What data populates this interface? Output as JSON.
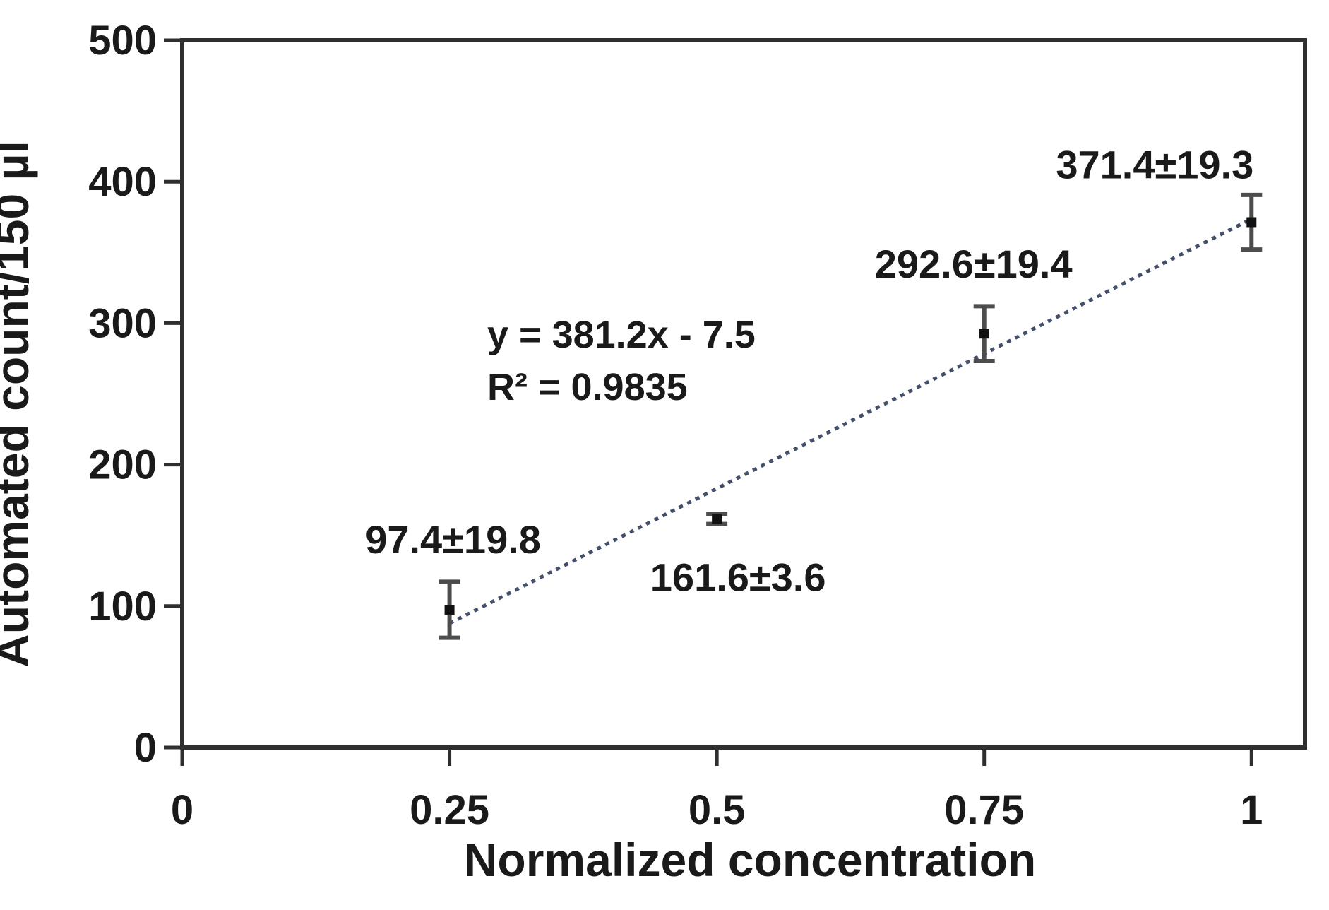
{
  "chart_data": {
    "type": "scatter",
    "xlabel": "Normalized concentration",
    "ylabel": "Automated count/150 µl",
    "xlim": [
      0,
      1.05
    ],
    "ylim": [
      0,
      500
    ],
    "x_ticks": [
      0,
      0.25,
      0.5,
      0.75,
      1
    ],
    "x_tick_labels": [
      "0",
      "0.25",
      "0.5",
      "0.75",
      "1"
    ],
    "y_ticks": [
      0,
      100,
      200,
      300,
      400,
      500
    ],
    "y_tick_labels": [
      "0",
      "100",
      "200",
      "300",
      "400",
      "500"
    ],
    "grid": false,
    "legend": false,
    "points": [
      {
        "x": 0.25,
        "y": 97.4,
        "error": 19.8,
        "label": "97.4±19.8"
      },
      {
        "x": 0.5,
        "y": 161.6,
        "error": 3.6,
        "label": "161.6±3.6"
      },
      {
        "x": 0.75,
        "y": 292.6,
        "error": 19.4,
        "label": "292.6±19.4"
      },
      {
        "x": 1.0,
        "y": 371.4,
        "error": 19.3,
        "label": "371.4±19.3"
      }
    ],
    "trendline": {
      "slope": 381.2,
      "intercept": -7.5,
      "x_start": 0.25,
      "x_end": 1.0,
      "style": "dotted"
    },
    "equation_label": "y = 381.2x - 7.5",
    "r_squared_label": "R² = 0.9835",
    "colors": {
      "axis": "#2f2f2f",
      "text": "#1a1a1a",
      "marker": "#111111",
      "error_bar": "#4d4d4d",
      "trendline": "#44506a",
      "background": "#ffffff"
    }
  }
}
